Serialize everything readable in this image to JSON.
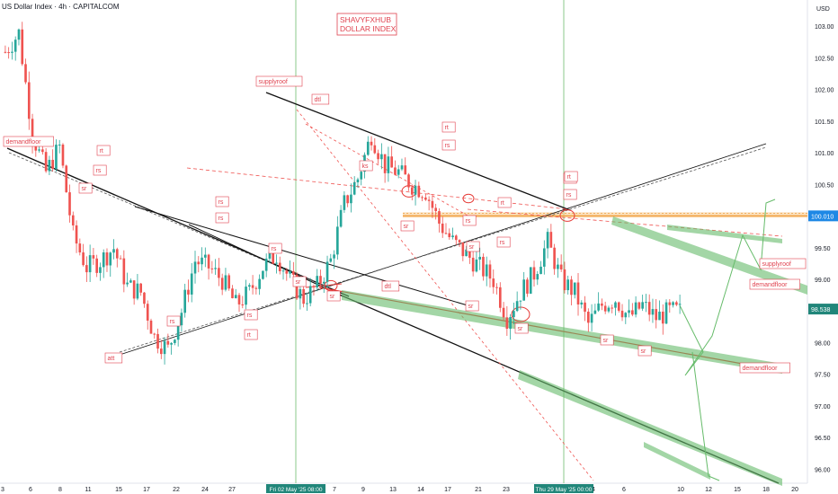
{
  "header": {
    "symbol_title": "US Dollar Index · 4h · CAPITALCOM",
    "currency": "USD"
  },
  "overlay_text": {
    "brand_line1": "SHAVYFXHUB",
    "brand_line2": "DOLLAR INDEX"
  },
  "colors": {
    "up": "#26a69a",
    "down": "#ef5350",
    "text_red": "#e0424f",
    "level_line": "#f0a040",
    "green_band": "#66bb6a",
    "vline": "#8bc98b",
    "price_tag_blue": "#1e88e5",
    "price_tag_green": "#21867a"
  },
  "chart_data": {
    "type": "candlestick",
    "title": "US Dollar Index · 4h · CAPITALCOM",
    "unit": "USD",
    "ylim": [
      95.9,
      103.25
    ],
    "y_ticks": [
      "103.00",
      "102.50",
      "102.00",
      "101.50",
      "101.00",
      "100.50",
      "100.00",
      "99.50",
      "99.00",
      "98.50",
      "98.00",
      "97.50",
      "97.00",
      "96.50",
      "96.00"
    ],
    "x_ticks": [
      "3",
      "6",
      "8",
      "11",
      "15",
      "17",
      "22",
      "24",
      "27",
      "7",
      "9",
      "13",
      "14",
      "17",
      "21",
      "23",
      "2",
      "4",
      "6",
      "10",
      "12",
      "15",
      "18",
      "20"
    ],
    "x_highlight": [
      "Fri 02 May '25   08:00",
      "Thu 29 May '25   00:00"
    ],
    "price_last": "98.538",
    "price_level": "100.010",
    "close_path": [
      102.6,
      102.9,
      101.3,
      100.7,
      101.1,
      99.7,
      99.2,
      99.3,
      99.5,
      98.9,
      98.8,
      98.1,
      97.9,
      98.5,
      99.3,
      99.2,
      99.0,
      98.6,
      98.8,
      99.2,
      99.4,
      99.0,
      98.7,
      98.9,
      99.3,
      100.2,
      100.6,
      101.3,
      100.8,
      100.7,
      100.5,
      100.4,
      99.9,
      99.6,
      99.4,
      99.2,
      99.0,
      98.4,
      98.8,
      99.1,
      99.6,
      99.0,
      98.8,
      98.3,
      98.6,
      98.7,
      98.4,
      98.6,
      98.4,
      98.5
    ],
    "annotations": [
      "supplyroof",
      "dtl",
      "rt",
      "rs",
      "sr",
      "rs",
      "rs",
      "rs",
      "rs",
      "ks",
      "rt",
      "rs",
      "sr",
      "rs",
      "rt",
      "rs",
      "sr",
      "rs",
      "rs",
      "sr",
      "rt",
      "dtl",
      "att",
      "sr",
      "sr",
      "rt",
      "rs",
      "sr",
      "sr",
      "sr",
      "supplyroof",
      "demandfloor",
      "demandfloor",
      "demandfloor"
    ]
  }
}
